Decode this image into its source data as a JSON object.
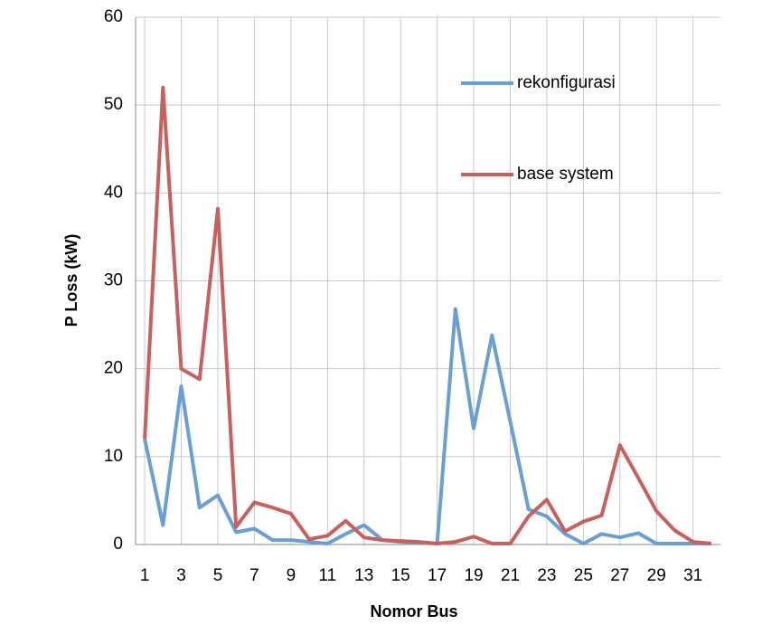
{
  "chart_data": {
    "type": "line",
    "x_label": "Nomor Bus",
    "y_label": "P Loss (kW)",
    "x": [
      1,
      2,
      3,
      4,
      5,
      6,
      7,
      8,
      9,
      10,
      11,
      12,
      13,
      14,
      15,
      16,
      17,
      18,
      19,
      20,
      21,
      22,
      23,
      24,
      25,
      26,
      27,
      28,
      29,
      30,
      31,
      32
    ],
    "series": [
      {
        "name": "rekonfigurasi",
        "color": "#6a9fd6",
        "values": [
          12,
          2.2,
          18,
          4.2,
          5.6,
          1.4,
          1.8,
          0.5,
          0.5,
          0.3,
          0.1,
          1.2,
          2.2,
          0.5,
          0.3,
          0.2,
          0.1,
          26.8,
          13.2,
          23.8,
          14,
          4,
          3.2,
          1.2,
          0.1,
          1.2,
          0.8,
          1.3,
          0.1,
          0.1,
          0.1,
          0.1
        ]
      },
      {
        "name": "base system",
        "color": "#c9605b",
        "values": [
          12,
          52,
          20,
          18.8,
          38.2,
          2,
          4.8,
          4.2,
          3.5,
          0.6,
          1,
          2.7,
          0.8,
          0.5,
          0.4,
          0.3,
          0.1,
          0.3,
          0.9,
          0.1,
          0.1,
          3.2,
          5.1,
          1.5,
          2.6,
          3.3,
          11.3,
          7.6,
          3.8,
          1.6,
          0.3,
          0.1
        ]
      }
    ],
    "xlim": [
      0.5,
      32.5
    ],
    "xticks": [
      1,
      3,
      5,
      7,
      9,
      11,
      13,
      15,
      17,
      19,
      21,
      23,
      25,
      27,
      29,
      31
    ],
    "ylim": [
      0,
      60
    ],
    "yticks": [
      0,
      10,
      20,
      30,
      40,
      50,
      60
    ],
    "grid": true,
    "legend": "upper-right"
  }
}
